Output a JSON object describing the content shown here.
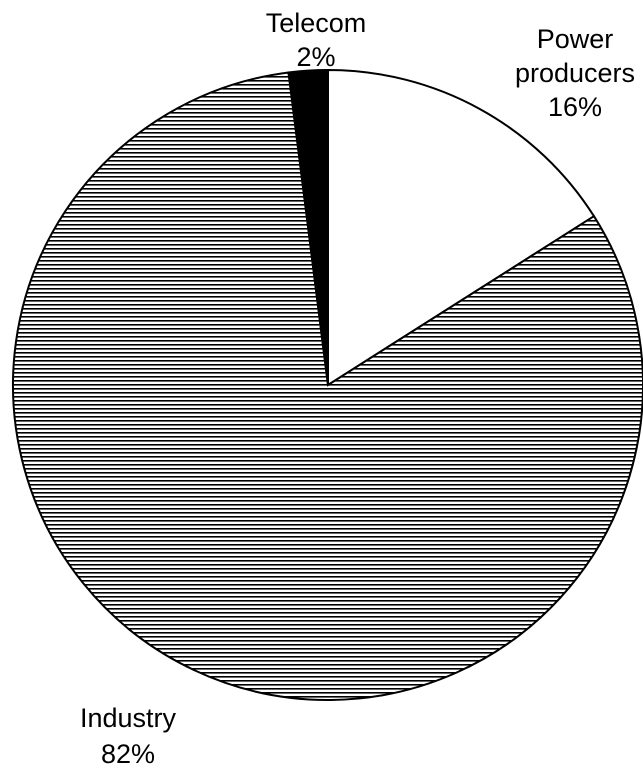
{
  "chart_data": {
    "type": "pie",
    "title": "",
    "start_angle_deg": 0,
    "direction": "clockwise",
    "slices": [
      {
        "label": "Power producers",
        "label_lines": [
          "Power",
          "producers"
        ],
        "value": 16,
        "value_label": "16%",
        "fill": "white",
        "color": "#ffffff"
      },
      {
        "label": "Industry",
        "label_lines": [
          "Industry"
        ],
        "value": 82,
        "value_label": "82%",
        "fill": "horizontal-hatch",
        "color": "#000000"
      },
      {
        "label": "Telecom",
        "label_lines": [
          "Telecom"
        ],
        "value": 2,
        "value_label": "2%",
        "fill": "solid",
        "color": "#000000"
      }
    ]
  }
}
